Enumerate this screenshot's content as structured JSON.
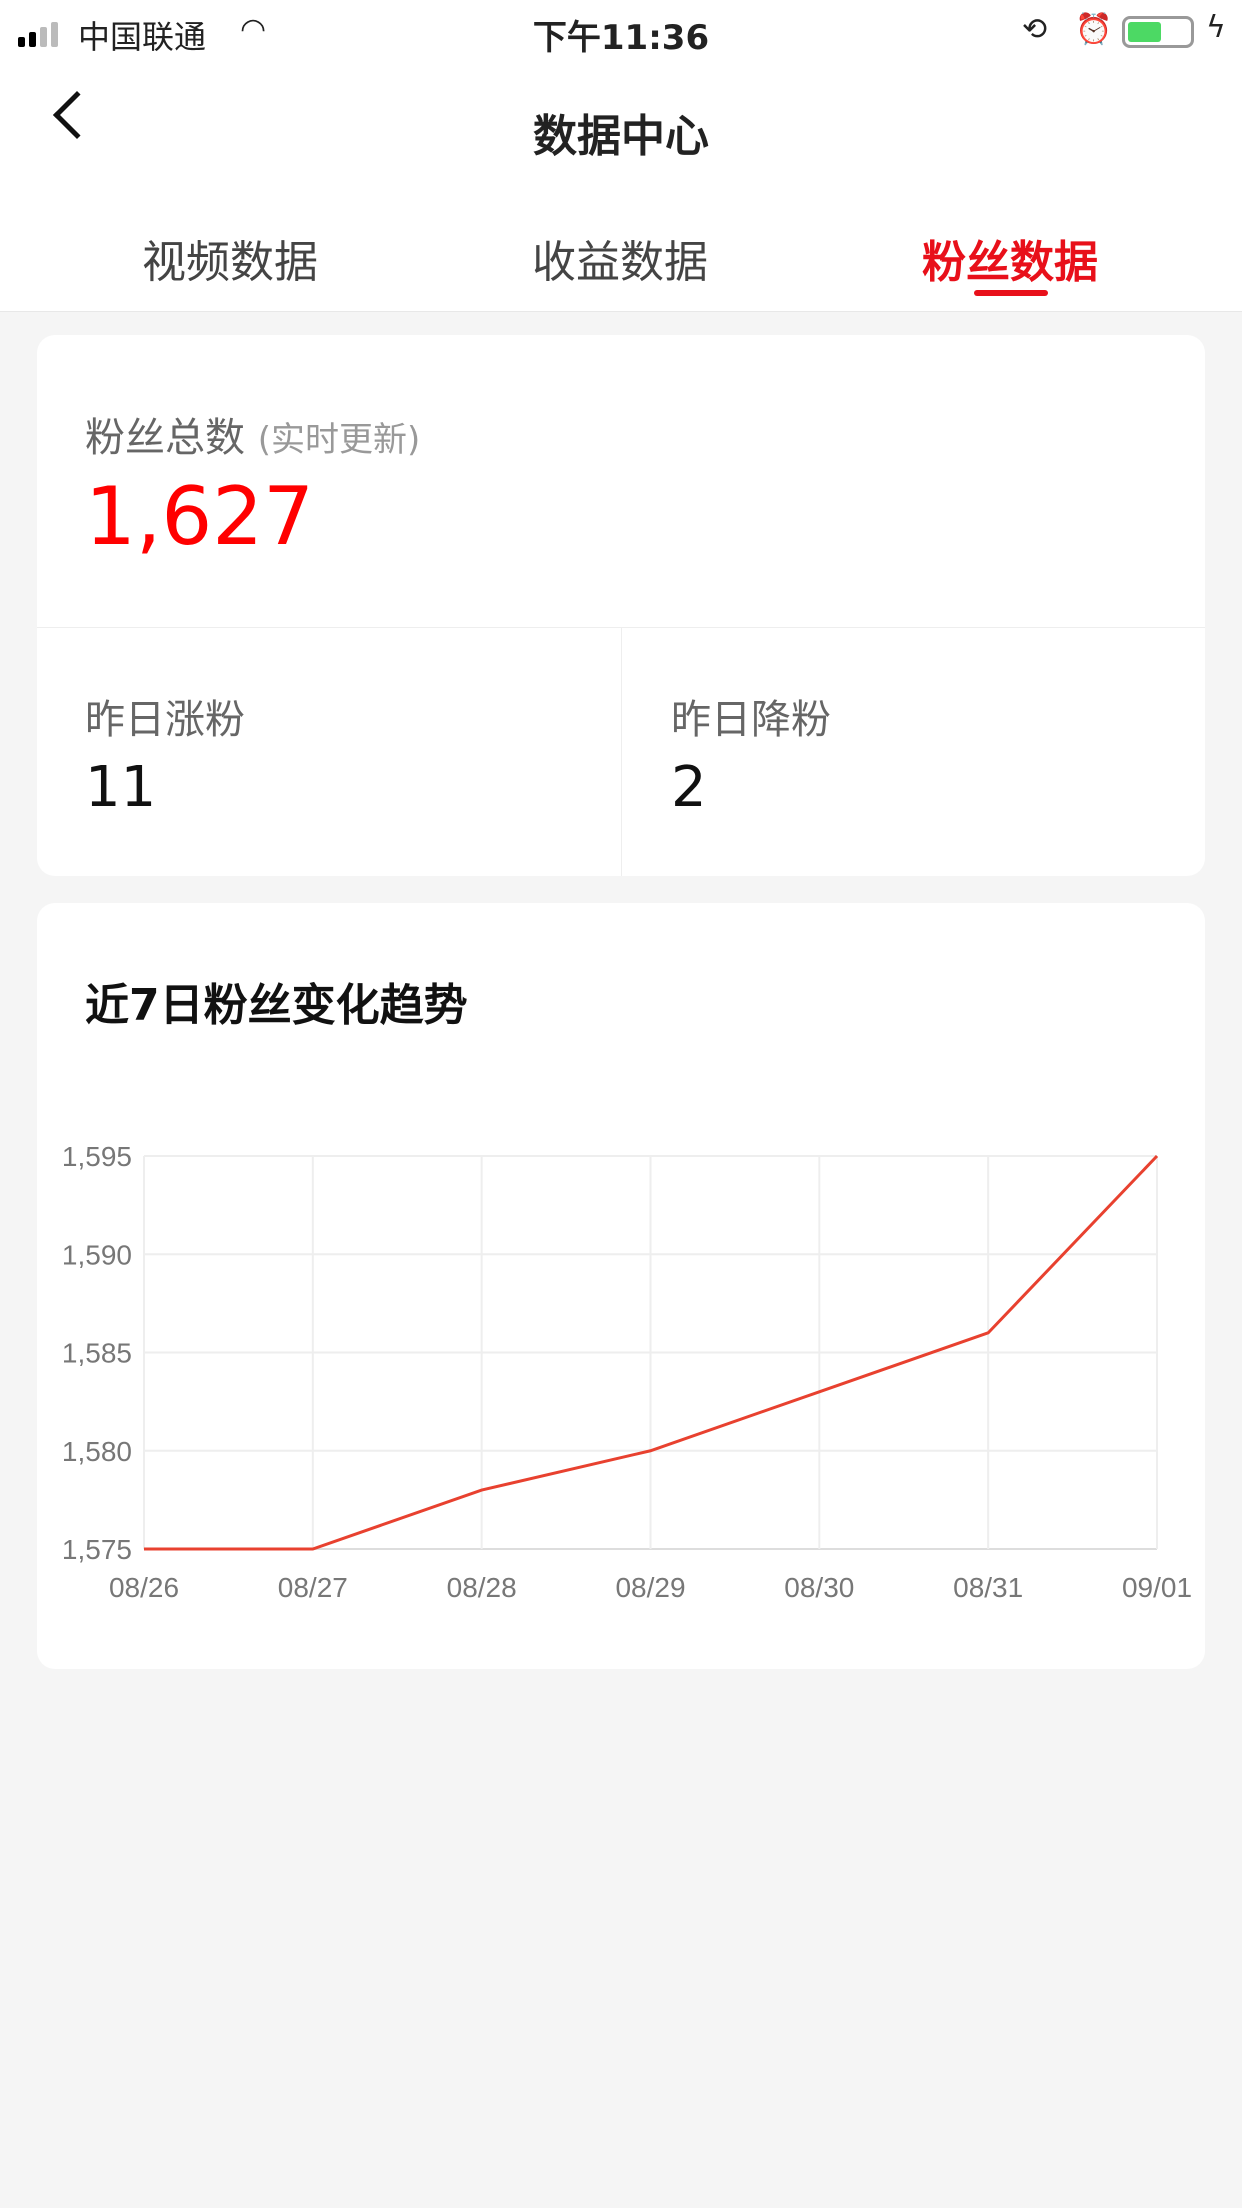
{
  "status": {
    "carrier": "中国联通",
    "time": "下午11:36",
    "battery_level": 0.55
  },
  "header": {
    "title": "数据中心",
    "back_icon": "chevron-left-icon"
  },
  "tabs": [
    {
      "label": "视频数据",
      "active": false
    },
    {
      "label": "收益数据",
      "active": false
    },
    {
      "label": "粉丝数据",
      "active": true
    }
  ],
  "accent": "#e8101a",
  "summary": {
    "total_label": "粉丝总数",
    "total_note": "(实时更新)",
    "total_value": "1,627",
    "gain_label": "昨日涨粉",
    "gain_value": "11",
    "loss_label": "昨日降粉",
    "loss_value": "2"
  },
  "chart_data": {
    "type": "line",
    "title": "近7日粉丝变化趋势",
    "categories": [
      "08/26",
      "08/27",
      "08/28",
      "08/29",
      "08/30",
      "08/31",
      "09/01"
    ],
    "values": [
      1575,
      1575,
      1578,
      1580,
      1583,
      1586,
      1595
    ],
    "ylim": [
      1575,
      1595
    ],
    "yticks": [
      "1,575",
      "1,580",
      "1,585",
      "1,590",
      "1,595"
    ],
    "grid": true,
    "color": "#e8412f"
  }
}
